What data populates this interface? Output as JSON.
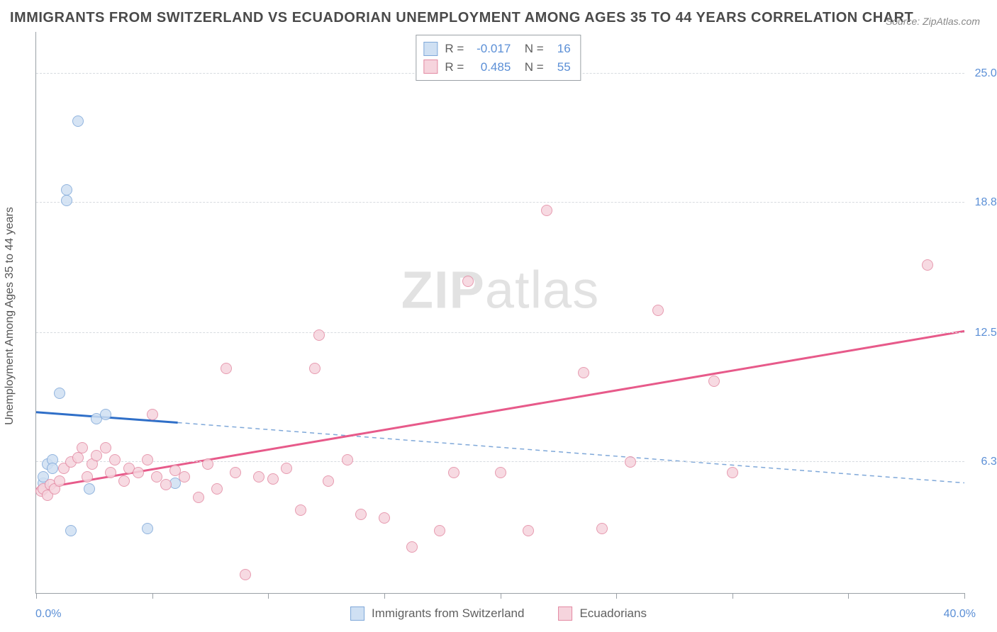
{
  "title": "IMMIGRANTS FROM SWITZERLAND VS ECUADORIAN UNEMPLOYMENT AMONG AGES 35 TO 44 YEARS CORRELATION CHART",
  "source": "Source: ZipAtlas.com",
  "ylabel": "Unemployment Among Ages 35 to 44 years",
  "watermark_a": "ZIP",
  "watermark_b": "atlas",
  "chart": {
    "type": "scatter",
    "background_color": "#ffffff",
    "grid_color": "#d7dbe0",
    "axis_color": "#9aa0a6",
    "text_color": "#555555",
    "value_color": "#5b8fd6",
    "xlim": [
      0,
      40
    ],
    "ylim": [
      0,
      27
    ],
    "x_ticks_major": [
      0,
      10,
      20,
      30,
      40
    ],
    "x_ticks_minor": [
      5,
      15,
      25,
      35
    ],
    "x_labels": [
      {
        "v": 0,
        "t": "0.0%"
      },
      {
        "v": 40,
        "t": "40.0%"
      }
    ],
    "y_gridlines": [
      {
        "v": 6.3,
        "t": "6.3%"
      },
      {
        "v": 12.5,
        "t": "12.5%"
      },
      {
        "v": 18.8,
        "t": "18.8%"
      },
      {
        "v": 25.0,
        "t": "25.0%"
      }
    ],
    "marker_radius": 8,
    "series": [
      {
        "name": "Immigrants from Switzerland",
        "color_fill": "#cfe0f3",
        "color_stroke": "#7fa8d9",
        "r": "-0.017",
        "n": "16",
        "trend": {
          "solid": {
            "x1": 0,
            "y1": 8.7,
            "x2": 6.1,
            "y2": 8.2,
            "color": "#2f6fc8",
            "width": 3
          },
          "dashed": {
            "x1": 6.1,
            "y1": 8.2,
            "x2": 40,
            "y2": 5.3,
            "color": "#7fa8d9",
            "width": 1.5,
            "dash": "6 5"
          }
        },
        "points": [
          {
            "x": 0.3,
            "y": 5.0
          },
          {
            "x": 0.3,
            "y": 5.3
          },
          {
            "x": 0.3,
            "y": 5.6
          },
          {
            "x": 0.5,
            "y": 6.2
          },
          {
            "x": 0.7,
            "y": 6.4
          },
          {
            "x": 0.7,
            "y": 6.0
          },
          {
            "x": 1.0,
            "y": 9.6
          },
          {
            "x": 1.5,
            "y": 3.0
          },
          {
            "x": 1.8,
            "y": 22.7
          },
          {
            "x": 1.3,
            "y": 19.4
          },
          {
            "x": 1.3,
            "y": 18.9
          },
          {
            "x": 2.3,
            "y": 5.0
          },
          {
            "x": 2.6,
            "y": 8.4
          },
          {
            "x": 3.0,
            "y": 8.6
          },
          {
            "x": 4.8,
            "y": 3.1
          },
          {
            "x": 6.0,
            "y": 5.3
          }
        ]
      },
      {
        "name": "Ecuadorians",
        "color_fill": "#f6d4dd",
        "color_stroke": "#e38aa3",
        "r": "0.485",
        "n": "55",
        "trend": {
          "solid": {
            "x1": 0,
            "y1": 5.0,
            "x2": 40,
            "y2": 12.6,
            "color": "#e75a8a",
            "width": 3
          }
        },
        "points": [
          {
            "x": 0.2,
            "y": 4.9
          },
          {
            "x": 0.3,
            "y": 5.0
          },
          {
            "x": 0.5,
            "y": 4.7
          },
          {
            "x": 0.6,
            "y": 5.2
          },
          {
            "x": 0.8,
            "y": 5.0
          },
          {
            "x": 1.0,
            "y": 5.4
          },
          {
            "x": 1.2,
            "y": 6.0
          },
          {
            "x": 1.5,
            "y": 6.3
          },
          {
            "x": 1.8,
            "y": 6.5
          },
          {
            "x": 2.0,
            "y": 7.0
          },
          {
            "x": 2.2,
            "y": 5.6
          },
          {
            "x": 2.4,
            "y": 6.2
          },
          {
            "x": 2.6,
            "y": 6.6
          },
          {
            "x": 3.0,
            "y": 7.0
          },
          {
            "x": 3.2,
            "y": 5.8
          },
          {
            "x": 3.4,
            "y": 6.4
          },
          {
            "x": 3.8,
            "y": 5.4
          },
          {
            "x": 4.0,
            "y": 6.0
          },
          {
            "x": 4.4,
            "y": 5.8
          },
          {
            "x": 4.8,
            "y": 6.4
          },
          {
            "x": 5.0,
            "y": 8.6
          },
          {
            "x": 5.2,
            "y": 5.6
          },
          {
            "x": 5.6,
            "y": 5.2
          },
          {
            "x": 6.0,
            "y": 5.9
          },
          {
            "x": 6.4,
            "y": 5.6
          },
          {
            "x": 7.0,
            "y": 4.6
          },
          {
            "x": 7.4,
            "y": 6.2
          },
          {
            "x": 7.8,
            "y": 5.0
          },
          {
            "x": 8.2,
            "y": 10.8
          },
          {
            "x": 8.6,
            "y": 5.8
          },
          {
            "x": 9.0,
            "y": 0.9
          },
          {
            "x": 9.6,
            "y": 5.6
          },
          {
            "x": 10.2,
            "y": 5.5
          },
          {
            "x": 10.8,
            "y": 6.0
          },
          {
            "x": 11.4,
            "y": 4.0
          },
          {
            "x": 12.0,
            "y": 10.8
          },
          {
            "x": 12.2,
            "y": 12.4
          },
          {
            "x": 12.6,
            "y": 5.4
          },
          {
            "x": 13.4,
            "y": 6.4
          },
          {
            "x": 14.0,
            "y": 3.8
          },
          {
            "x": 15.0,
            "y": 3.6
          },
          {
            "x": 16.2,
            "y": 2.2
          },
          {
            "x": 17.4,
            "y": 3.0
          },
          {
            "x": 18.0,
            "y": 5.8
          },
          {
            "x": 18.6,
            "y": 15.0
          },
          {
            "x": 20.0,
            "y": 5.8
          },
          {
            "x": 21.2,
            "y": 3.0
          },
          {
            "x": 22.0,
            "y": 18.4
          },
          {
            "x": 23.6,
            "y": 10.6
          },
          {
            "x": 24.4,
            "y": 3.1
          },
          {
            "x": 25.6,
            "y": 6.3
          },
          {
            "x": 26.8,
            "y": 13.6
          },
          {
            "x": 29.2,
            "y": 10.2
          },
          {
            "x": 30.0,
            "y": 5.8
          },
          {
            "x": 38.4,
            "y": 15.8
          }
        ]
      }
    ],
    "bottom_legend": [
      {
        "swatch_fill": "#cfe0f3",
        "swatch_stroke": "#7fa8d9",
        "label": "Immigrants from Switzerland"
      },
      {
        "swatch_fill": "#f6d4dd",
        "swatch_stroke": "#e38aa3",
        "label": "Ecuadorians"
      }
    ]
  }
}
